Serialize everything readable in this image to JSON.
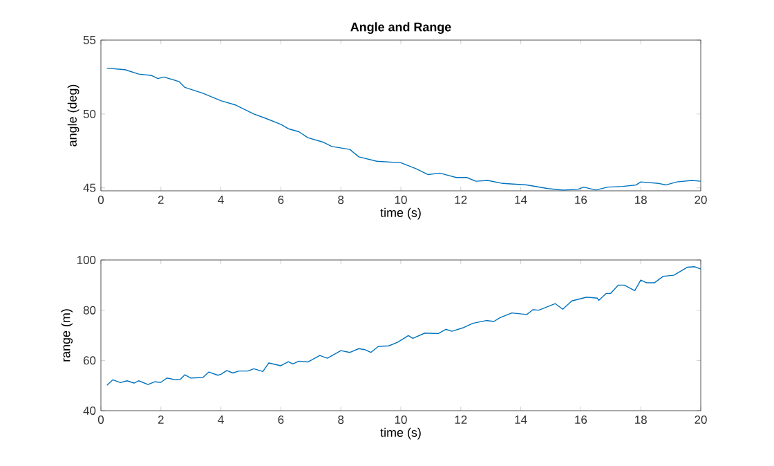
{
  "chart_data": [
    {
      "type": "line",
      "title": "Angle and Range",
      "xlabel": "time (s)",
      "ylabel": "angle (deg)",
      "xlim": [
        0,
        20
      ],
      "ylim": [
        44.8,
        55
      ],
      "xticks": [
        0,
        2,
        4,
        6,
        8,
        10,
        12,
        14,
        16,
        18,
        20
      ],
      "yticks": [
        45,
        50,
        55
      ],
      "series": [
        {
          "color": "#0072bd",
          "x": [
            0.2,
            0.8,
            1.26,
            1.7,
            1.9,
            2.1,
            2.6,
            2.8,
            3.4,
            4.0,
            4.5,
            5.1,
            5.5,
            6.0,
            6.25,
            6.6,
            6.9,
            7.4,
            7.7,
            8.3,
            8.6,
            9.2,
            10.0,
            10.5,
            10.9,
            11.3,
            11.85,
            12.2,
            12.5,
            12.9,
            13.4,
            14.2,
            14.9,
            15.4,
            15.9,
            16.1,
            16.5,
            16.9,
            17.4,
            17.85,
            18.0,
            18.6,
            18.85,
            19.2,
            19.7,
            20.0
          ],
          "values": [
            53.1,
            53.0,
            52.7,
            52.6,
            52.4,
            52.5,
            52.2,
            51.8,
            51.4,
            50.9,
            50.6,
            50.0,
            49.7,
            49.3,
            49.0,
            48.8,
            48.4,
            48.1,
            47.8,
            47.6,
            47.1,
            46.8,
            46.7,
            46.3,
            45.9,
            46.0,
            45.7,
            45.7,
            45.45,
            45.5,
            45.3,
            45.2,
            44.95,
            44.85,
            44.9,
            45.05,
            44.85,
            45.05,
            45.1,
            45.2,
            45.4,
            45.3,
            45.2,
            45.4,
            45.5,
            45.45
          ]
        }
      ]
    },
    {
      "type": "line",
      "xlabel": "time (s)",
      "ylabel": "range (m)",
      "xlim": [
        0,
        20
      ],
      "ylim": [
        40,
        100
      ],
      "xticks": [
        0,
        2,
        4,
        6,
        8,
        10,
        12,
        14,
        16,
        18,
        20
      ],
      "yticks": [
        40,
        60,
        80,
        100
      ],
      "series": [
        {
          "color": "#0072bd",
          "x": [
            0.2,
            0.4,
            0.65,
            0.87,
            1.1,
            1.26,
            1.57,
            1.8,
            2.0,
            2.2,
            2.5,
            2.65,
            2.8,
            3.0,
            3.4,
            3.6,
            3.9,
            4.0,
            4.2,
            4.4,
            4.6,
            4.9,
            5.1,
            5.4,
            5.6,
            6.0,
            6.25,
            6.4,
            6.6,
            6.9,
            7.3,
            7.55,
            8.0,
            8.3,
            8.6,
            8.8,
            9.0,
            9.25,
            9.6,
            9.9,
            10.25,
            10.4,
            10.8,
            11.25,
            11.5,
            11.7,
            12.1,
            12.4,
            12.85,
            13.1,
            13.3,
            13.7,
            14.2,
            14.4,
            14.6,
            15.15,
            15.4,
            15.7,
            16.2,
            16.55,
            16.6,
            16.85,
            17.0,
            17.25,
            17.45,
            17.8,
            18.0,
            18.2,
            18.45,
            18.75,
            19.1,
            19.55,
            19.8,
            20.0
          ],
          "values": [
            50.1,
            52.3,
            51.2,
            51.9,
            51.0,
            51.9,
            50.4,
            51.5,
            51.3,
            53.0,
            52.3,
            52.5,
            54.3,
            53.0,
            53.2,
            55.4,
            54.1,
            54.5,
            56.0,
            55.0,
            55.8,
            55.8,
            56.7,
            55.6,
            59.0,
            57.9,
            59.5,
            58.6,
            59.7,
            59.4,
            62.0,
            60.9,
            63.9,
            63.2,
            64.7,
            64.3,
            63.2,
            65.6,
            65.8,
            67.3,
            69.9,
            68.8,
            70.9,
            70.7,
            72.4,
            71.6,
            73.1,
            74.8,
            75.9,
            75.5,
            77.0,
            78.9,
            78.3,
            80.2,
            80.0,
            82.6,
            80.4,
            83.7,
            85.2,
            84.8,
            83.9,
            86.7,
            86.7,
            90.0,
            90.0,
            87.8,
            92.0,
            90.9,
            90.9,
            93.5,
            93.9,
            97.1,
            97.3,
            96.4
          ]
        }
      ]
    }
  ]
}
